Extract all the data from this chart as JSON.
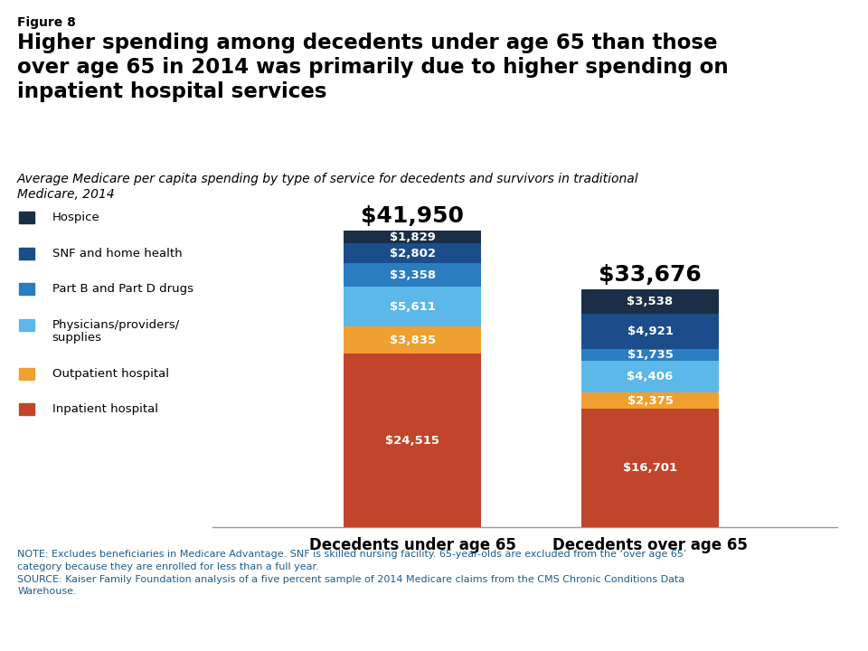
{
  "figure_label": "Figure 8",
  "title": "Higher spending among decedents under age 65 than those\nover age 65 in 2014 was primarily due to higher spending on\ninpatient hospital services",
  "subtitle": "Average Medicare per capita spending by type of service for decedents and survivors in traditional\nMedicare, 2014",
  "categories": [
    "Decedents under age 65",
    "Decedents over age 65"
  ],
  "totals": [
    "$41,950",
    "$33,676"
  ],
  "segments": [
    {
      "label": "Inpatient hospital",
      "color": "#C0452A",
      "values": [
        24515,
        16701
      ],
      "labels": [
        "$24,515",
        "$16,701"
      ]
    },
    {
      "label": "Outpatient hospital",
      "color": "#F0A030",
      "values": [
        3835,
        2375
      ],
      "labels": [
        "$3,835",
        "$2,375"
      ]
    },
    {
      "label": "Physicians/providers/\nsupplies",
      "color": "#5BB8E8",
      "values": [
        5611,
        4406
      ],
      "labels": [
        "$5,611",
        "$4,406"
      ]
    },
    {
      "label": "Part B and Part D drugs",
      "color": "#2A7DC0",
      "values": [
        3358,
        1735
      ],
      "labels": [
        "$3,358",
        "$1,735"
      ]
    },
    {
      "label": "SNF and home health",
      "color": "#1A4D8A",
      "values": [
        2802,
        4921
      ],
      "labels": [
        "$2,802",
        "$4,921"
      ]
    },
    {
      "label": "Hospice",
      "color": "#1A2E45",
      "values": [
        1829,
        3538
      ],
      "labels": [
        "$1,829",
        "$3,538"
      ]
    }
  ],
  "note_text": "NOTE: Excludes beneficiaries in Medicare Advantage. SNF is skilled nursing facility. 65-year-olds are excluded from the ‘over age 65’\ncategory because they are enrolled for less than a full year.\nSOURCE: Kaiser Family Foundation analysis of a five percent sample of 2014 Medicare claims from the CMS Chronic Conditions Data\nWarehouse.",
  "legend_items": [
    {
      "label": "Hospice",
      "color": "#1A2E45"
    },
    {
      "label": "SNF and home health",
      "color": "#1A4D8A"
    },
    {
      "label": "Part B and Part D drugs",
      "color": "#2A7DC0"
    },
    {
      "label": "Physicians/providers/\nsupplies",
      "color": "#5BB8E8"
    },
    {
      "label": "Outpatient hospital",
      "color": "#F0A030"
    },
    {
      "label": "Inpatient hospital",
      "color": "#C0452A"
    }
  ],
  "note_color": "#1F5C8B",
  "bar_positions": [
    0.32,
    0.7
  ],
  "bar_width": 0.22,
  "xlim": [
    0.0,
    1.0
  ],
  "ylim": [
    0,
    46000
  ],
  "background_color": "#ffffff"
}
